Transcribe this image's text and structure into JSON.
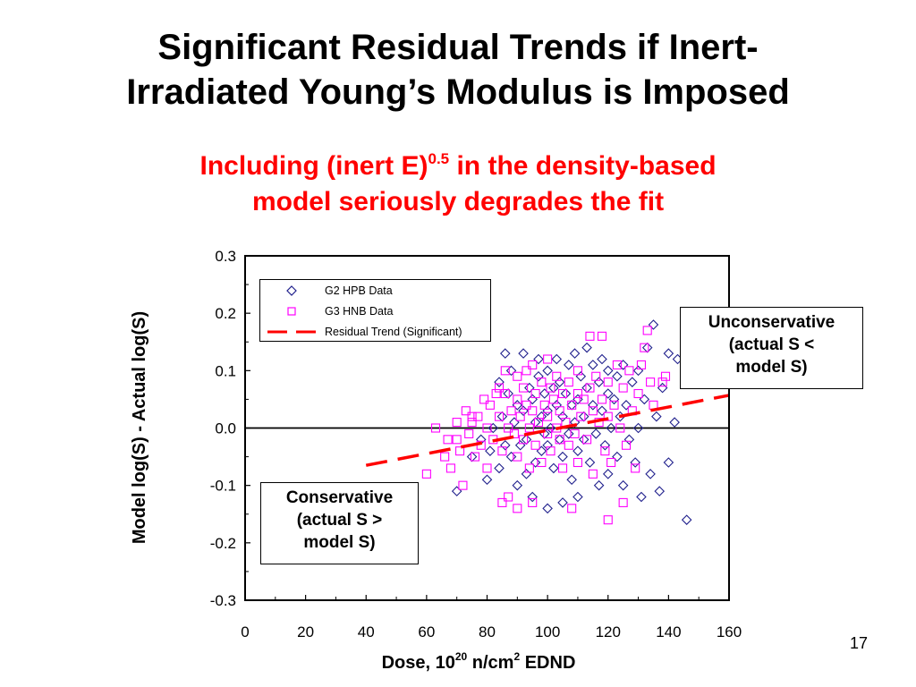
{
  "slide": {
    "title_line1": "Significant Residual Trends if Inert-",
    "title_line2": "Irradiated Young’s Modulus is Imposed",
    "subtitle_part1": "Including (inert E)",
    "subtitle_sup": "0.5",
    "subtitle_part2": " in the density-based",
    "subtitle_line2": "model seriously degrades the fit",
    "page_number": "17",
    "subtitle_color": "#ff0000"
  },
  "callouts": {
    "unconservative": [
      "Unconservative",
      "(actual S <",
      "model S)"
    ],
    "conservative": [
      "Conservative",
      "(actual S >",
      "model S)"
    ]
  },
  "chart_data": {
    "type": "scatter",
    "title": "",
    "xlabel_main": "Dose, 10",
    "xlabel_sup1": "20",
    "xlabel_mid": " n/cm",
    "xlabel_sup2": "2",
    "xlabel_end": " EDND",
    "ylabel": "Model log(S) - Actual log(S)",
    "xlim": [
      0,
      160
    ],
    "ylim": [
      -0.3,
      0.3
    ],
    "x_ticks": [
      "0",
      "20",
      "40",
      "60",
      "80",
      "100",
      "120",
      "140",
      "160"
    ],
    "y_ticks": [
      "0.3",
      "0.2",
      "0.1",
      "0.0",
      "-0.1",
      "-0.2",
      "-0.3"
    ],
    "grid": false,
    "zero_line": true,
    "legend": [
      "G2 HPB Data",
      "G3 HNB Data",
      "Residual Trend (Significant)"
    ],
    "legend_position": "top-left",
    "series": [
      {
        "name": "G2 HPB Data",
        "marker": "diamond",
        "color": "#1f1f8c",
        "points": [
          [
            70,
            -0.11
          ],
          [
            75,
            -0.05
          ],
          [
            78,
            -0.02
          ],
          [
            80,
            -0.09
          ],
          [
            82,
            0.0
          ],
          [
            84,
            -0.07
          ],
          [
            85,
            0.02
          ],
          [
            86,
            -0.03
          ],
          [
            87,
            0.06
          ],
          [
            88,
            0.1
          ],
          [
            88,
            -0.05
          ],
          [
            89,
            0.01
          ],
          [
            90,
            0.04
          ],
          [
            90,
            -0.1
          ],
          [
            91,
            -0.03
          ],
          [
            92,
            0.13
          ],
          [
            92,
            0.03
          ],
          [
            93,
            -0.02
          ],
          [
            93,
            -0.08
          ],
          [
            94,
            0.07
          ],
          [
            95,
            0.05
          ],
          [
            95,
            -0.12
          ],
          [
            96,
            0.01
          ],
          [
            96,
            -0.06
          ],
          [
            97,
            0.09
          ],
          [
            97,
            0.12
          ],
          [
            98,
            0.02
          ],
          [
            98,
            -0.04
          ],
          [
            99,
            0.06
          ],
          [
            99,
            -0.01
          ],
          [
            100,
            0.1
          ],
          [
            100,
            0.03
          ],
          [
            100,
            -0.03
          ],
          [
            100,
            -0.14
          ],
          [
            101,
            0.0
          ],
          [
            102,
            0.07
          ],
          [
            102,
            -0.07
          ],
          [
            103,
            0.12
          ],
          [
            103,
            0.04
          ],
          [
            104,
            -0.02
          ],
          [
            104,
            0.08
          ],
          [
            105,
            0.02
          ],
          [
            105,
            -0.05
          ],
          [
            105,
            -0.13
          ],
          [
            106,
            0.06
          ],
          [
            107,
            0.11
          ],
          [
            107,
            -0.01
          ],
          [
            108,
            0.04
          ],
          [
            108,
            -0.09
          ],
          [
            109,
            0.13
          ],
          [
            109,
            0.01
          ],
          [
            110,
            0.05
          ],
          [
            110,
            -0.04
          ],
          [
            110,
            -0.12
          ],
          [
            111,
            0.09
          ],
          [
            112,
            0.02
          ],
          [
            112,
            -0.02
          ],
          [
            113,
            0.14
          ],
          [
            113,
            0.07
          ],
          [
            114,
            -0.06
          ],
          [
            115,
            0.04
          ],
          [
            115,
            0.11
          ],
          [
            116,
            -0.01
          ],
          [
            117,
            0.08
          ],
          [
            117,
            -0.1
          ],
          [
            118,
            0.03
          ],
          [
            118,
            0.12
          ],
          [
            119,
            -0.03
          ],
          [
            120,
            0.06
          ],
          [
            120,
            0.1
          ],
          [
            120,
            -0.08
          ],
          [
            121,
            0.0
          ],
          [
            122,
            0.05
          ],
          [
            123,
            -0.05
          ],
          [
            123,
            0.09
          ],
          [
            124,
            0.02
          ],
          [
            125,
            0.11
          ],
          [
            125,
            -0.1
          ],
          [
            126,
            0.04
          ],
          [
            127,
            -0.02
          ],
          [
            128,
            0.08
          ],
          [
            129,
            -0.06
          ],
          [
            130,
            0.1
          ],
          [
            130,
            0.0
          ],
          [
            131,
            -0.12
          ],
          [
            132,
            0.05
          ],
          [
            133,
            0.14
          ],
          [
            134,
            -0.08
          ],
          [
            135,
            0.18
          ],
          [
            136,
            0.02
          ],
          [
            137,
            -0.11
          ],
          [
            138,
            0.07
          ],
          [
            140,
            0.13
          ],
          [
            140,
            -0.06
          ],
          [
            142,
            0.01
          ],
          [
            143,
            0.12
          ],
          [
            146,
            -0.16
          ],
          [
            86,
            0.13
          ],
          [
            84,
            0.08
          ],
          [
            81,
            -0.04
          ]
        ]
      },
      {
        "name": "G3 HNB Data",
        "marker": "square",
        "color": "#ff00ff",
        "points": [
          [
            60,
            -0.08
          ],
          [
            63,
            0.0
          ],
          [
            66,
            -0.05
          ],
          [
            67,
            -0.02
          ],
          [
            68,
            -0.07
          ],
          [
            70,
            -0.02
          ],
          [
            70,
            0.01
          ],
          [
            71,
            -0.04
          ],
          [
            72,
            -0.1
          ],
          [
            73,
            0.03
          ],
          [
            74,
            -0.01
          ],
          [
            75,
            0.01
          ],
          [
            76,
            -0.05
          ],
          [
            77,
            0.02
          ],
          [
            78,
            -0.03
          ],
          [
            79,
            0.05
          ],
          [
            80,
            0.0
          ],
          [
            80,
            -0.07
          ],
          [
            81,
            0.04
          ],
          [
            82,
            -0.02
          ],
          [
            83,
            0.06
          ],
          [
            84,
            0.02
          ],
          [
            85,
            -0.04
          ],
          [
            85,
            -0.13
          ],
          [
            86,
            0.06
          ],
          [
            87,
            0.0
          ],
          [
            87,
            -0.12
          ],
          [
            88,
            0.03
          ],
          [
            89,
            -0.01
          ],
          [
            90,
            0.09
          ],
          [
            90,
            0.05
          ],
          [
            90,
            -0.05
          ],
          [
            91,
            0.02
          ],
          [
            92,
            0.07
          ],
          [
            92,
            -0.02
          ],
          [
            93,
            0.1
          ],
          [
            93,
            0.04
          ],
          [
            94,
            0.0
          ],
          [
            94,
            -0.07
          ],
          [
            95,
            0.11
          ],
          [
            95,
            0.03
          ],
          [
            96,
            0.06
          ],
          [
            96,
            -0.03
          ],
          [
            97,
            0.01
          ],
          [
            98,
            0.08
          ],
          [
            98,
            -0.06
          ],
          [
            99,
            0.04
          ],
          [
            100,
            0.12
          ],
          [
            100,
            0.02
          ],
          [
            100,
            -0.01
          ],
          [
            101,
            0.07
          ],
          [
            101,
            -0.04
          ],
          [
            102,
            0.05
          ],
          [
            103,
            0.0
          ],
          [
            103,
            0.09
          ],
          [
            104,
            -0.02
          ],
          [
            104,
            0.03
          ],
          [
            105,
            0.06
          ],
          [
            105,
            -0.07
          ],
          [
            106,
            0.01
          ],
          [
            107,
            0.08
          ],
          [
            107,
            -0.03
          ],
          [
            108,
            0.04
          ],
          [
            109,
            -0.01
          ],
          [
            110,
            0.06
          ],
          [
            110,
            0.1
          ],
          [
            110,
            -0.06
          ],
          [
            111,
            0.02
          ],
          [
            112,
            0.05
          ],
          [
            113,
            -0.02
          ],
          [
            114,
            0.07
          ],
          [
            115,
            0.03
          ],
          [
            115,
            -0.08
          ],
          [
            116,
            0.09
          ],
          [
            117,
            0.01
          ],
          [
            118,
            0.05
          ],
          [
            119,
            -0.04
          ],
          [
            120,
            0.08
          ],
          [
            120,
            0.02
          ],
          [
            121,
            -0.06
          ],
          [
            122,
            0.04
          ],
          [
            123,
            0.11
          ],
          [
            124,
            0.0
          ],
          [
            125,
            0.07
          ],
          [
            126,
            -0.03
          ],
          [
            127,
            0.1
          ],
          [
            128,
            0.03
          ],
          [
            129,
            -0.07
          ],
          [
            130,
            0.06
          ],
          [
            131,
            0.11
          ],
          [
            132,
            0.14
          ],
          [
            133,
            0.17
          ],
          [
            134,
            0.08
          ],
          [
            135,
            0.04
          ],
          [
            138,
            0.08
          ],
          [
            139,
            0.09
          ],
          [
            120,
            -0.16
          ],
          [
            125,
            -0.13
          ],
          [
            108,
            -0.14
          ],
          [
            95,
            -0.13
          ],
          [
            90,
            -0.14
          ],
          [
            114,
            0.16
          ],
          [
            118,
            0.16
          ],
          [
            84,
            0.07
          ],
          [
            86,
            0.1
          ],
          [
            75,
            0.02
          ]
        ]
      },
      {
        "name": "Residual Trend (Significant)",
        "type": "line",
        "style": "dashed",
        "color": "#ff0000",
        "points": [
          [
            40,
            -0.065
          ],
          [
            160,
            0.057
          ]
        ]
      }
    ]
  }
}
